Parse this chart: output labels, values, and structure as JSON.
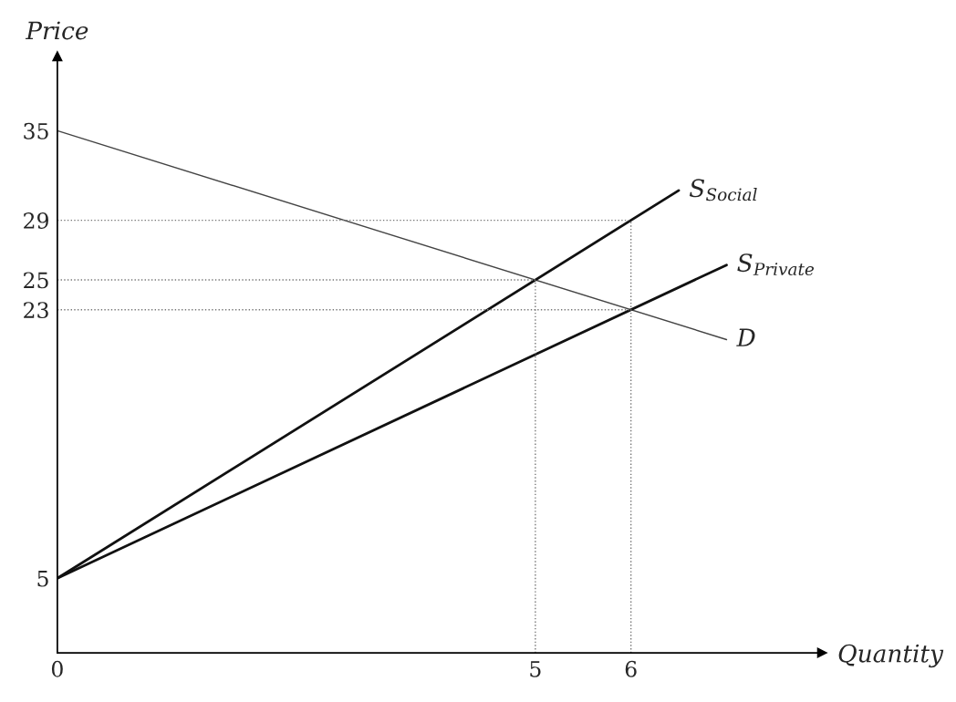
{
  "chart_data": {
    "type": "line",
    "xlabel": "Quantity",
    "ylabel": "Price",
    "xlim": [
      0,
      8
    ],
    "ylim": [
      0,
      40
    ],
    "xticks": [
      0,
      5,
      6
    ],
    "yticks": [
      5,
      23,
      25,
      29,
      35
    ],
    "grid": false,
    "legend": false,
    "marker": "none",
    "line_style": "solid",
    "series": [
      {
        "name": "D",
        "x": [
          0,
          7
        ],
        "values": [
          35,
          21
        ],
        "color": "#444444"
      },
      {
        "name": "S$_{Social}$",
        "x": [
          0,
          6.5
        ],
        "values": [
          5,
          31
        ],
        "color": "#111111"
      },
      {
        "name": "S$_{Private}$",
        "x": [
          0,
          7
        ],
        "values": [
          5,
          26
        ],
        "color": "#111111"
      }
    ],
    "ref_lines": [
      {
        "axis": "y",
        "value": 29,
        "color": "#777777",
        "line_style": "dotted"
      },
      {
        "axis": "y",
        "value": 25,
        "color": "#777777",
        "line_style": "dotted"
      },
      {
        "axis": "y",
        "value": 23,
        "color": "#777777",
        "line_style": "dotted"
      },
      {
        "axis": "x",
        "value": 5,
        "color": "#777777",
        "line_style": "dotted"
      },
      {
        "axis": "x",
        "value": 6,
        "color": "#777777",
        "line_style": "dotted"
      }
    ]
  }
}
